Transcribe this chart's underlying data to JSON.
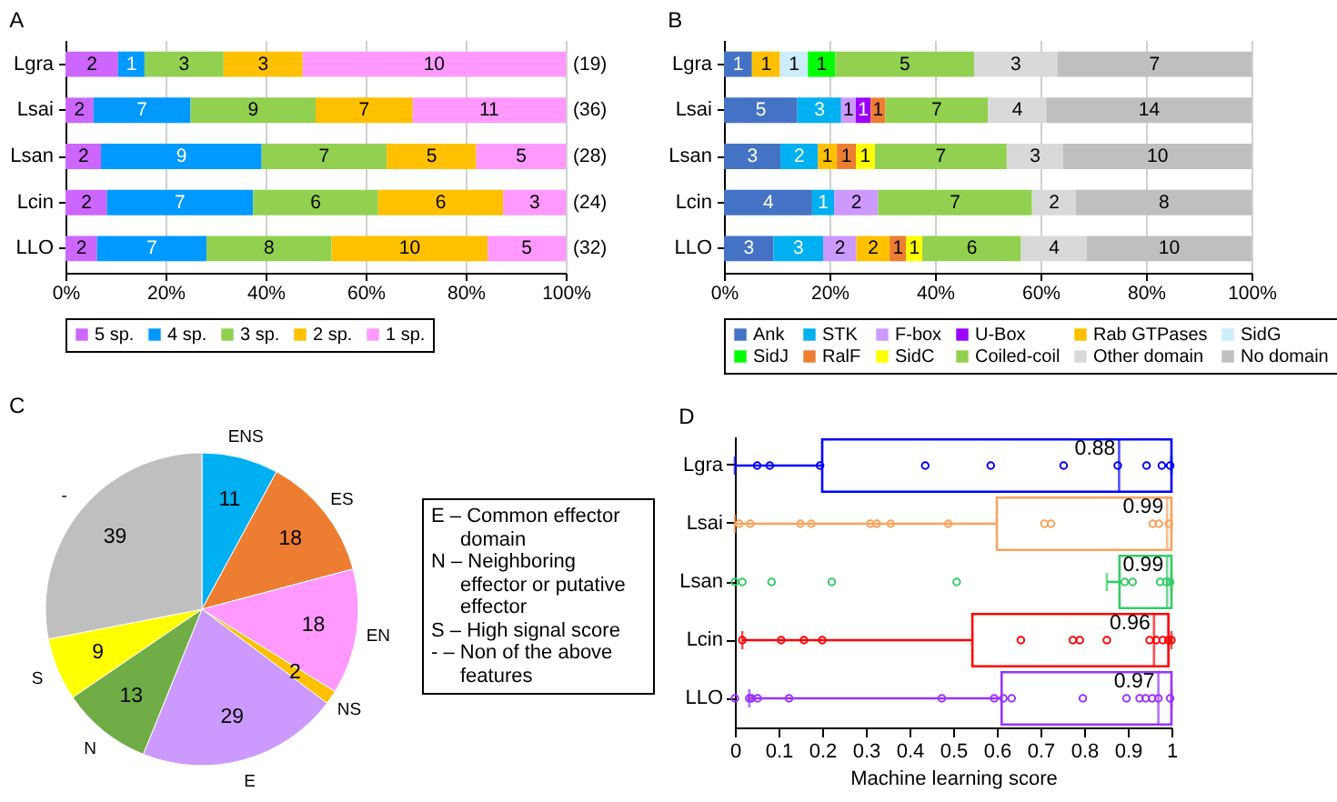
{
  "chart_data": [
    {
      "type": "bar",
      "title": "A",
      "orientation": "horizontal",
      "stacked": true,
      "categories": [
        "Lgra",
        "Lsai",
        "Lsan",
        "Lcin",
        "LLO"
      ],
      "xlim": [
        0,
        100
      ],
      "xticks": [
        {
          "value": 0,
          "label": "0%"
        },
        {
          "value": 20,
          "label": "20%"
        },
        {
          "value": 40,
          "label": "40%"
        },
        {
          "value": 60,
          "label": "60%"
        },
        {
          "value": 80,
          "label": "80%"
        },
        {
          "value": 100,
          "label": "100%"
        }
      ],
      "grid": "x",
      "legend": "bottom",
      "series": [
        {
          "name": "5 sp.",
          "color": "#cc66ff",
          "values": [
            10.5,
            5.6,
            7.1,
            8.3,
            6.3
          ]
        },
        {
          "name": "4 sp.",
          "color": "#0099ff",
          "values": [
            5.3,
            19.4,
            32.1,
            29.2,
            21.9
          ]
        },
        {
          "name": "3 sp.",
          "color": "#92d050",
          "values": [
            15.8,
            25.0,
            25.0,
            25.0,
            25.0
          ]
        },
        {
          "name": "2 sp.",
          "color": "#ffc000",
          "values": [
            15.8,
            19.4,
            17.9,
            25.0,
            31.2
          ]
        },
        {
          "name": "1 sp.",
          "color": "#ff99ff",
          "values": [
            52.6,
            30.6,
            17.9,
            12.5,
            15.6
          ]
        }
      ],
      "annotations": [
        {
          "text": "2",
          "x": 5.3,
          "y": "Lgra"
        },
        {
          "text": "1",
          "x": 13.2,
          "y": "Lgra"
        },
        {
          "text": "3",
          "x": 23.7,
          "y": "Lgra"
        },
        {
          "text": "3",
          "x": 39.5,
          "y": "Lgra"
        },
        {
          "text": "10",
          "x": 73.7,
          "y": "Lgra"
        },
        {
          "text": "2",
          "x": 2.8,
          "y": "Lsai"
        },
        {
          "text": "7",
          "x": 15.3,
          "y": "Lsai"
        },
        {
          "text": "9",
          "x": 37.5,
          "y": "Lsai"
        },
        {
          "text": "7",
          "x": 59.7,
          "y": "Lsai"
        },
        {
          "text": "11",
          "x": 84.7,
          "y": "Lsai"
        },
        {
          "text": "2",
          "x": 3.6,
          "y": "Lsan"
        },
        {
          "text": "9",
          "x": 23.2,
          "y": "Lsan"
        },
        {
          "text": "7",
          "x": 51.7,
          "y": "Lsan"
        },
        {
          "text": "5",
          "x": 73.2,
          "y": "Lsan"
        },
        {
          "text": "5",
          "x": 91.1,
          "y": "Lsan"
        },
        {
          "text": "2",
          "x": 4.2,
          "y": "Lcin"
        },
        {
          "text": "7",
          "x": 22.9,
          "y": "Lcin"
        },
        {
          "text": "6",
          "x": 50.0,
          "y": "Lcin"
        },
        {
          "text": "6",
          "x": 75.0,
          "y": "Lcin"
        },
        {
          "text": "3",
          "x": 93.8,
          "y": "Lcin"
        },
        {
          "text": "2",
          "x": 3.2,
          "y": "LLO"
        },
        {
          "text": "7",
          "x": 17.3,
          "y": "LLO"
        },
        {
          "text": "8",
          "x": 40.7,
          "y": "LLO"
        },
        {
          "text": "10",
          "x": 68.8,
          "y": "LLO"
        },
        {
          "text": "5",
          "x": 92.2,
          "y": "LLO"
        },
        {
          "text": "(19)",
          "x": 100,
          "y": "Lgra"
        },
        {
          "text": "(36)",
          "x": 100,
          "y": "Lsai"
        },
        {
          "text": "(28)",
          "x": 100,
          "y": "Lsan"
        },
        {
          "text": "(24)",
          "x": 100,
          "y": "Lcin"
        },
        {
          "text": "(32)",
          "x": 100,
          "y": "LLO"
        }
      ]
    },
    {
      "type": "bar",
      "title": "B",
      "orientation": "horizontal",
      "stacked": true,
      "categories": [
        "Lgra",
        "Lsai",
        "Lsan",
        "Lcin",
        "LLO"
      ],
      "xlim": [
        0,
        100
      ],
      "xticks": [
        {
          "value": 0,
          "label": "0%"
        },
        {
          "value": 20,
          "label": "20%"
        },
        {
          "value": 40,
          "label": "40%"
        },
        {
          "value": 60,
          "label": "60%"
        },
        {
          "value": 80,
          "label": "80%"
        },
        {
          "value": 100,
          "label": "100%"
        }
      ],
      "grid": "x",
      "legend": "bottom",
      "series": [
        {
          "name": "Ank",
          "color": "#4472c4",
          "values": [
            5.3,
            13.9,
            10.7,
            16.7,
            9.4
          ]
        },
        {
          "name": "STK",
          "color": "#00b0f0",
          "values": [
            null,
            8.3,
            7.1,
            4.2,
            9.4
          ]
        },
        {
          "name": "F-box",
          "color": "#cc99ff",
          "values": [
            null,
            2.8,
            null,
            8.3,
            6.3
          ]
        },
        {
          "name": "U-Box",
          "color": "#9900ff",
          "values": [
            null,
            2.8,
            null,
            null,
            null
          ]
        },
        {
          "name": "Rab GTPases",
          "color": "#ffc000",
          "values": [
            5.3,
            null,
            3.6,
            null,
            6.3
          ]
        },
        {
          "name": "SidG",
          "color": "#ccecff",
          "values": [
            5.3,
            null,
            null,
            null,
            null
          ]
        },
        {
          "name": "SidJ",
          "color": "#00ff00",
          "values": [
            5.2,
            null,
            null,
            null,
            null
          ]
        },
        {
          "name": "RalF",
          "color": "#ed7d31",
          "values": [
            null,
            2.8,
            3.6,
            null,
            3.1
          ]
        },
        {
          "name": "SidC",
          "color": "#ffff00",
          "values": [
            null,
            null,
            3.6,
            null,
            3.1
          ]
        },
        {
          "name": "Coiled-coil",
          "color": "#92d050",
          "values": [
            26.3,
            19.4,
            25.0,
            29.2,
            18.7
          ]
        },
        {
          "name": "Other domain",
          "color": "#d9d9d9",
          "values": [
            15.8,
            11.1,
            10.7,
            8.3,
            12.5
          ]
        },
        {
          "name": "No domain",
          "color": "#bfbfbf",
          "values": [
            36.8,
            38.9,
            35.7,
            33.3,
            31.2
          ]
        }
      ],
      "annotations": [
        {
          "text": "1",
          "x": 2.7,
          "y": "Lgra"
        },
        {
          "text": "1",
          "x": 8.0,
          "y": "Lgra"
        },
        {
          "text": "1",
          "x": 13.3,
          "y": "Lgra"
        },
        {
          "text": "1",
          "x": 18.5,
          "y": "Lgra"
        },
        {
          "text": "5",
          "x": 34.3,
          "y": "Lgra"
        },
        {
          "text": "3",
          "x": 55.3,
          "y": "Lgra"
        },
        {
          "text": "7",
          "x": 81.6,
          "y": "Lgra"
        },
        {
          "text": "5",
          "x": 7.0,
          "y": "Lsai"
        },
        {
          "text": "3",
          "x": 18.1,
          "y": "Lsai"
        },
        {
          "text": "1",
          "x": 23.6,
          "y": "Lsai"
        },
        {
          "text": "1",
          "x": 26.4,
          "y": "Lsai"
        },
        {
          "text": "1",
          "x": 29.2,
          "y": "Lsai"
        },
        {
          "text": "7",
          "x": 40.3,
          "y": "Lsai"
        },
        {
          "text": "4",
          "x": 55.6,
          "y": "Lsai"
        },
        {
          "text": "14",
          "x": 80.6,
          "y": "Lsai"
        },
        {
          "text": "3",
          "x": 5.4,
          "y": "Lsan"
        },
        {
          "text": "2",
          "x": 14.3,
          "y": "Lsan"
        },
        {
          "text": "1",
          "x": 19.6,
          "y": "Lsan"
        },
        {
          "text": "1",
          "x": 23.2,
          "y": "Lsan"
        },
        {
          "text": "1",
          "x": 26.8,
          "y": "Lsan"
        },
        {
          "text": "7",
          "x": 41.1,
          "y": "Lsan"
        },
        {
          "text": "3",
          "x": 59.0,
          "y": "Lsan"
        },
        {
          "text": "10",
          "x": 82.2,
          "y": "Lsan"
        },
        {
          "text": "4",
          "x": 8.4,
          "y": "Lcin"
        },
        {
          "text": "1",
          "x": 18.8,
          "y": "Lcin"
        },
        {
          "text": "2",
          "x": 25.1,
          "y": "Lcin"
        },
        {
          "text": "7",
          "x": 43.8,
          "y": "Lcin"
        },
        {
          "text": "2",
          "x": 62.6,
          "y": "Lcin"
        },
        {
          "text": "8",
          "x": 83.4,
          "y": "Lcin"
        },
        {
          "text": "3",
          "x": 4.7,
          "y": "LLO"
        },
        {
          "text": "3",
          "x": 14.1,
          "y": "LLO"
        },
        {
          "text": "2",
          "x": 22.0,
          "y": "LLO"
        },
        {
          "text": "2",
          "x": 28.3,
          "y": "LLO"
        },
        {
          "text": "1",
          "x": 33.0,
          "y": "LLO"
        },
        {
          "text": "1",
          "x": 36.1,
          "y": "LLO"
        },
        {
          "text": "6",
          "x": 47.0,
          "y": "LLO"
        },
        {
          "text": "4",
          "x": 62.6,
          "y": "LLO"
        },
        {
          "text": "10",
          "x": 84.4,
          "y": "LLO"
        }
      ]
    },
    {
      "type": "pie",
      "title": "C",
      "categories": [
        "ENS",
        "ES",
        "EN",
        "NS",
        "E",
        "N",
        "S",
        "-"
      ],
      "values": [
        11,
        18,
        18,
        2,
        29,
        13,
        9,
        39
      ],
      "colors": [
        "#00b0f0",
        "#ed7d31",
        "#ff99ff",
        "#ffc000",
        "#cc99ff",
        "#70ad47",
        "#ffff00",
        "#bfbfbf"
      ],
      "data_labels": true,
      "annotations": [
        "E – Common effector domain",
        "N – Neighboring effector or putative effector",
        "S – High signal score",
        "- – Non of the above features"
      ]
    },
    {
      "type": "box",
      "title": "D",
      "orientation": "horizontal",
      "categories": [
        "Lgra",
        "Lsai",
        "Lsan",
        "Lcin",
        "LLO"
      ],
      "xlabel": "Machine learning score",
      "xlim": [
        0,
        1
      ],
      "xticks": [
        0,
        0.1,
        0.2,
        0.3,
        0.4,
        0.5,
        0.6,
        0.7,
        0.8,
        0.9,
        1
      ],
      "marker": "circle",
      "colors": [
        "#0000ff",
        "#f8a35c",
        "#33cc66",
        "#ff0000",
        "#9933ff"
      ],
      "boxes": [
        {
          "low": 0.0,
          "q1": 0.2,
          "median": 0.88,
          "q3": 1.0,
          "high": 1.0
        },
        {
          "low": 0.0,
          "q1": 0.6,
          "median": 0.99,
          "q3": 1.0,
          "high": 1.0
        },
        {
          "low": 0.852,
          "q1": 0.881,
          "median": 0.99,
          "q3": 1.0,
          "high": 1.0
        },
        {
          "low": 0.017,
          "q1": 0.544,
          "median": 0.96,
          "q3": 0.993,
          "high": 1.0
        },
        {
          "low": 0.033,
          "q1": 0.611,
          "median": 0.97,
          "q3": 1.0,
          "high": 1.0
        }
      ],
      "series": [
        {
          "type": "scatter",
          "color": "#0000ff",
          "x": [
            "Lgra",
            "Lgra",
            "Lgra",
            "Lgra",
            "Lgra",
            "Lgra",
            "Lgra",
            "Lgra",
            "Lgra",
            "Lgra"
          ],
          "values": [
            0.051,
            0.08,
            0.195,
            0.436,
            0.586,
            0.753,
            0.877,
            0.943,
            0.978,
            0.997
          ]
        },
        {
          "type": "scatter",
          "color": "#f8a35c",
          "x": [
            "Lsai",
            "Lsai",
            "Lsai",
            "Lsai",
            "Lsai",
            "Lsai",
            "Lsai",
            "Lsai",
            "Lsai",
            "Lsai",
            "Lsai",
            "Lsai",
            "Lsai"
          ],
          "values": [
            0.01,
            0.035,
            0.15,
            0.175,
            0.31,
            0.325,
            0.357,
            0.489,
            0.709,
            0.724,
            0.957,
            0.971,
            0.994
          ]
        },
        {
          "type": "scatter",
          "color": "#33cc66",
          "x": [
            "Lsan",
            "Lsan",
            "Lsan",
            "Lsan",
            "Lsan",
            "Lsan",
            "Lsan",
            "Lsan",
            "Lsan",
            "Lsan"
          ],
          "values": [
            0.0,
            0.017,
            0.084,
            0.222,
            0.508,
            0.893,
            0.911,
            0.974,
            0.988,
            0.997
          ]
        },
        {
          "type": "scatter",
          "color": "#ff0000",
          "x": [
            "Lcin",
            "Lcin",
            "Lcin",
            "Lcin",
            "Lcin",
            "Lcin",
            "Lcin",
            "Lcin",
            "Lcin",
            "Lcin",
            "Lcin",
            "Lcin",
            "Lcin"
          ],
          "values": [
            0.017,
            0.106,
            0.158,
            0.2,
            0.655,
            0.774,
            0.79,
            0.852,
            0.95,
            0.965,
            0.98,
            0.993,
            1.0
          ]
        },
        {
          "type": "scatter",
          "color": "#9933ff",
          "x": [
            "LLO",
            "LLO",
            "LLO",
            "LLO",
            "LLO",
            "LLO",
            "LLO",
            "LLO",
            "LLO",
            "LLO",
            "LLO",
            "LLO",
            "LLO",
            "LLO",
            "LLO",
            "LLO"
          ],
          "values": [
            0.0,
            0.033,
            0.038,
            0.052,
            0.124,
            0.474,
            0.594,
            0.615,
            0.634,
            0.797,
            0.897,
            0.927,
            0.941,
            0.956,
            0.97,
            0.997
          ]
        }
      ],
      "annotations": [
        {
          "text": "0.88",
          "x": 0.88,
          "y": "Lgra"
        },
        {
          "text": "0.99",
          "x": 0.99,
          "y": "Lsai"
        },
        {
          "text": "0.99",
          "x": 0.99,
          "y": "Lsan"
        },
        {
          "text": "0.96",
          "x": 0.96,
          "y": "Lcin"
        },
        {
          "text": "0.97",
          "x": 0.97,
          "y": "LLO"
        }
      ]
    }
  ]
}
